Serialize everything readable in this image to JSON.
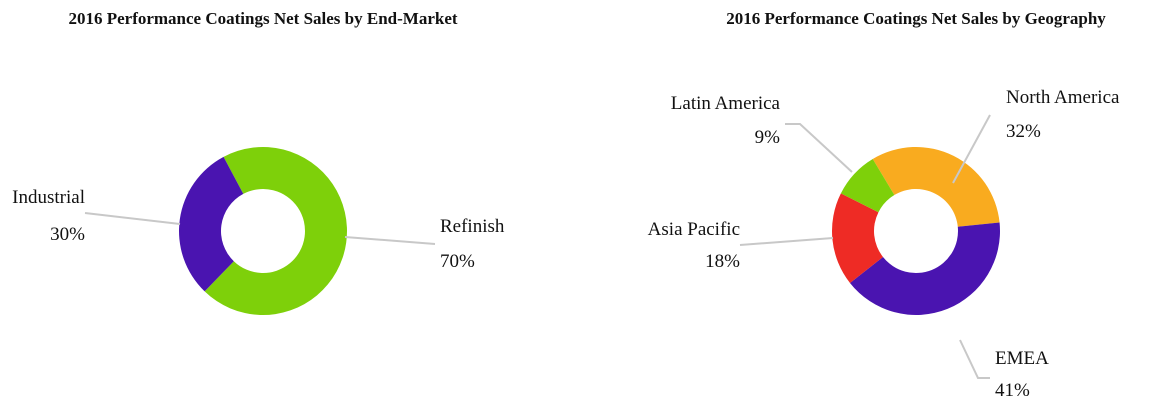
{
  "chart_data": [
    {
      "type": "donut",
      "title": "2016 Performance Coatings Net Sales by End-Market",
      "categories": [
        "Refinish",
        "Industrial"
      ],
      "values": [
        70,
        30
      ],
      "value_labels": [
        "70%",
        "30%"
      ],
      "colors": [
        "#7ed00a",
        "#4a14b0"
      ]
    },
    {
      "type": "donut",
      "title": "2016 Performance Coatings Net Sales by Geography",
      "categories": [
        "North America",
        "EMEA",
        "Asia Pacific",
        "Latin America"
      ],
      "values": [
        32,
        41,
        18,
        9
      ],
      "value_labels": [
        "32%",
        "41%",
        "18%",
        "9%"
      ],
      "colors": [
        "#f9ab1f",
        "#4a14b0",
        "#ee2b25",
        "#7ed00a"
      ]
    }
  ]
}
